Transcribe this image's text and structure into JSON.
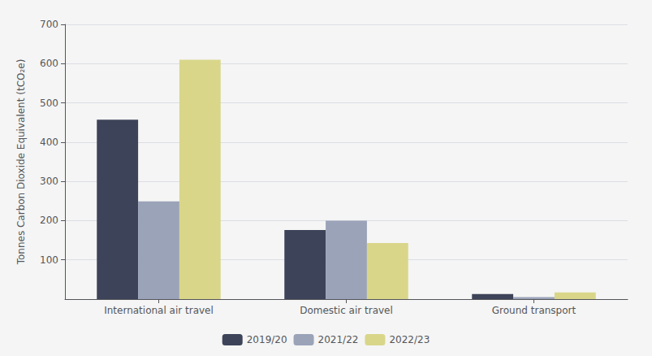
{
  "chart_data": {
    "type": "bar",
    "categories": [
      "International air travel",
      "Domestic air travel",
      "Ground transport"
    ],
    "series": [
      {
        "name": "2019/20",
        "color": "#3d4459",
        "values": [
          457,
          176,
          13
        ]
      },
      {
        "name": "2021/22",
        "color": "#9aa3b8",
        "values": [
          249,
          200,
          5
        ]
      },
      {
        "name": "2022/23",
        "color": "#d9d68a",
        "values": [
          610,
          143,
          17
        ]
      }
    ],
    "ylabel": "Tonnes Carbon Dioxide Equivalent (tCO₂e)",
    "ylim": [
      0,
      700
    ],
    "yticks": [
      100,
      200,
      300,
      400,
      500,
      600,
      700
    ],
    "grid": true,
    "legend": "bottom"
  }
}
